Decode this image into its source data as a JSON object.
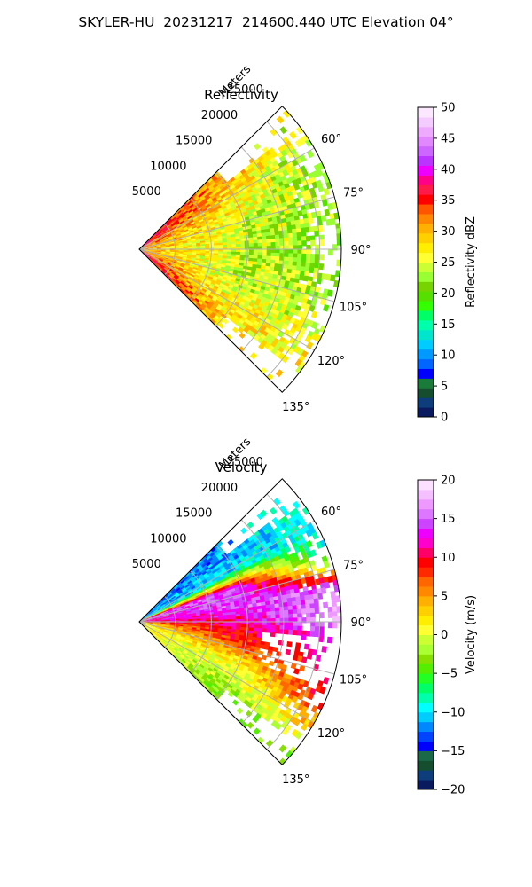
{
  "title": "SKYLER-HU  20231217  214600.440 UTC Elevation 04°",
  "chart_data": [
    {
      "type": "heatmap",
      "title": "Reflectivity",
      "radial_axis_label": "Meters",
      "radial_ticks": [
        5000,
        10000,
        15000,
        20000,
        25000
      ],
      "radial_tick_labels": [
        "5000",
        "10000",
        "15000",
        "20000",
        "25000"
      ],
      "angle_ticks": [
        60,
        75,
        90,
        105,
        120,
        135
      ],
      "angle_tick_labels": [
        "60°",
        "75°",
        "90°",
        "105°",
        "120°",
        "135°"
      ],
      "angle_range_deg": [
        45,
        135
      ],
      "range_max_m": 28000,
      "colorbar": {
        "label": "Reflectivity dBZ",
        "min": 0,
        "max": 50,
        "ticks": [
          0,
          5,
          10,
          15,
          20,
          25,
          30,
          35,
          40,
          45,
          50
        ],
        "tick_labels": [
          "0",
          "5",
          "10",
          "15",
          "20",
          "25",
          "30",
          "35",
          "40",
          "45",
          "50"
        ],
        "colors": [
          "#0a1a5e",
          "#0d3d7a",
          "#144e2f",
          "#1a7a3a",
          "#0000ff",
          "#0066ff",
          "#0099ff",
          "#00ccff",
          "#00e5cc",
          "#00ffaa",
          "#00ff66",
          "#33ff00",
          "#55e000",
          "#77d400",
          "#99ff33",
          "#ccff33",
          "#ffff33",
          "#ffee00",
          "#ffd000",
          "#ffb000",
          "#ff8800",
          "#ff5500",
          "#ff0000",
          "#ff1a4a",
          "#ff0088",
          "#ee00ff",
          "#bb33ff",
          "#cc66ff",
          "#e188ff",
          "#eeaaff",
          "#f5ccff",
          "#fbe8ff"
        ]
      },
      "field_summary": [
        {
          "azimuth_deg": 52,
          "dbz_near": 38,
          "dbz_mid": 30,
          "dbz_far": 24
        },
        {
          "azimuth_deg": 60,
          "dbz_near": 34,
          "dbz_mid": 28,
          "dbz_far": 23
        },
        {
          "azimuth_deg": 75,
          "dbz_near": 32,
          "dbz_mid": 25,
          "dbz_far": 22
        },
        {
          "azimuth_deg": 90,
          "dbz_near": 30,
          "dbz_mid": 24,
          "dbz_far": 22
        },
        {
          "azimuth_deg": 105,
          "dbz_near": 32,
          "dbz_mid": 24,
          "dbz_far": 23
        },
        {
          "azimuth_deg": 120,
          "dbz_near": 34,
          "dbz_mid": 27,
          "dbz_far": 26
        },
        {
          "azimuth_deg": 130,
          "dbz_near": 38,
          "dbz_mid": 29,
          "dbz_far": 27
        }
      ]
    },
    {
      "type": "heatmap",
      "title": "Velocity",
      "radial_axis_label": "Meters",
      "radial_ticks": [
        5000,
        10000,
        15000,
        20000,
        25000
      ],
      "radial_tick_labels": [
        "5000",
        "10000",
        "15000",
        "20000",
        "25000"
      ],
      "angle_ticks": [
        60,
        75,
        90,
        105,
        120,
        135
      ],
      "angle_tick_labels": [
        "60°",
        "75°",
        "90°",
        "105°",
        "120°",
        "135°"
      ],
      "angle_range_deg": [
        45,
        135
      ],
      "range_max_m": 28000,
      "colorbar": {
        "label": "Velocity (m/s)",
        "min": -20,
        "max": 20,
        "ticks": [
          -20,
          -15,
          -10,
          -5,
          0,
          5,
          10,
          15,
          20
        ],
        "tick_labels": [
          "−20",
          "−15",
          "−10",
          "−5",
          "0",
          "5",
          "10",
          "15",
          "20"
        ],
        "colors": [
          "#0a1a5e",
          "#0d3d7a",
          "#144e2f",
          "#1a6a4a",
          "#0000ff",
          "#0044ff",
          "#0088ff",
          "#00ccff",
          "#00ffff",
          "#00ffaa",
          "#00ff66",
          "#22ff22",
          "#55ee00",
          "#88e000",
          "#aaff33",
          "#ccff33",
          "#ffff33",
          "#ffee00",
          "#ffd000",
          "#ffb000",
          "#ff8800",
          "#ff6600",
          "#ff2a00",
          "#ff0000",
          "#ff0066",
          "#ff00cc",
          "#ee00ff",
          "#cc44ff",
          "#dd77ff",
          "#ee99ff",
          "#f5c0ff",
          "#fbe0ff"
        ]
      },
      "field_summary": [
        {
          "azimuth_deg": 50,
          "vel_near": -12,
          "vel_mid": -12,
          "vel_far": -8
        },
        {
          "azimuth_deg": 62,
          "vel_near": -10,
          "vel_mid": -10,
          "vel_far": -9
        },
        {
          "azimuth_deg": 70,
          "vel_near": 15,
          "vel_mid": 14,
          "vel_far": -10
        },
        {
          "azimuth_deg": 80,
          "vel_near": 12,
          "vel_mid": 15,
          "vel_far": 16
        },
        {
          "azimuth_deg": 90,
          "vel_near": 10,
          "vel_mid": 11,
          "vel_far": 17
        },
        {
          "azimuth_deg": 100,
          "vel_near": 2,
          "vel_mid": 9,
          "vel_far": 10
        },
        {
          "azimuth_deg": 115,
          "vel_near": 1,
          "vel_mid": 0,
          "vel_far": 9
        },
        {
          "azimuth_deg": 130,
          "vel_near": 2,
          "vel_mid": -3,
          "vel_far": -3
        }
      ]
    }
  ]
}
